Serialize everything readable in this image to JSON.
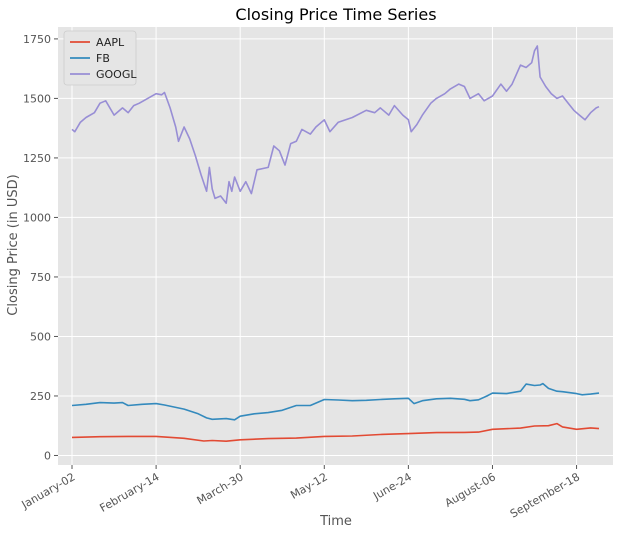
{
  "chart_data": {
    "type": "line",
    "title": "Closing Price Time Series",
    "xlabel": "Time",
    "ylabel": "Closing Price (in USD)",
    "x_tick_labels": [
      "January-02",
      "February-14",
      "March-30",
      "May-12",
      "June-24",
      "August-06",
      "September-18"
    ],
    "x_tick_positions": [
      0,
      30,
      60,
      90,
      120,
      150,
      180
    ],
    "x_range": [
      -5,
      193
    ],
    "ylim": [
      -40,
      1800
    ],
    "y_ticks": [
      0,
      250,
      500,
      750,
      1000,
      1250,
      1500,
      1750
    ],
    "grid": true,
    "legend_position": "top-left",
    "series": [
      {
        "name": "AAPL",
        "color": "#E24A33",
        "points": [
          [
            0,
            76
          ],
          [
            10,
            79
          ],
          [
            20,
            80
          ],
          [
            30,
            80
          ],
          [
            40,
            72
          ],
          [
            47,
            61
          ],
          [
            50,
            63
          ],
          [
            55,
            60
          ],
          [
            60,
            66
          ],
          [
            70,
            71
          ],
          [
            80,
            73
          ],
          [
            90,
            80
          ],
          [
            100,
            82
          ],
          [
            110,
            88
          ],
          [
            120,
            92
          ],
          [
            130,
            96
          ],
          [
            140,
            97
          ],
          [
            145,
            98
          ],
          [
            150,
            110
          ],
          [
            160,
            115
          ],
          [
            165,
            124
          ],
          [
            170,
            125
          ],
          [
            173,
            134
          ],
          [
            175,
            120
          ],
          [
            180,
            110
          ],
          [
            185,
            116
          ],
          [
            188,
            113
          ]
        ]
      },
      {
        "name": "FB",
        "color": "#348ABD",
        "points": [
          [
            0,
            210
          ],
          [
            5,
            215
          ],
          [
            10,
            222
          ],
          [
            15,
            220
          ],
          [
            18,
            222
          ],
          [
            20,
            210
          ],
          [
            25,
            215
          ],
          [
            30,
            218
          ],
          [
            33,
            212
          ],
          [
            40,
            195
          ],
          [
            45,
            175
          ],
          [
            48,
            158
          ],
          [
            50,
            152
          ],
          [
            55,
            155
          ],
          [
            58,
            150
          ],
          [
            60,
            165
          ],
          [
            65,
            175
          ],
          [
            70,
            180
          ],
          [
            75,
            190
          ],
          [
            80,
            210
          ],
          [
            85,
            210
          ],
          [
            90,
            235
          ],
          [
            95,
            233
          ],
          [
            100,
            230
          ],
          [
            105,
            232
          ],
          [
            110,
            235
          ],
          [
            115,
            238
          ],
          [
            120,
            240
          ],
          [
            122,
            218
          ],
          [
            125,
            230
          ],
          [
            130,
            238
          ],
          [
            135,
            240
          ],
          [
            140,
            236
          ],
          [
            142,
            230
          ],
          [
            145,
            234
          ],
          [
            148,
            250
          ],
          [
            150,
            262
          ],
          [
            155,
            260
          ],
          [
            160,
            270
          ],
          [
            162,
            300
          ],
          [
            165,
            294
          ],
          [
            167,
            296
          ],
          [
            168,
            302
          ],
          [
            170,
            282
          ],
          [
            173,
            270
          ],
          [
            175,
            268
          ],
          [
            180,
            260
          ],
          [
            182,
            255
          ],
          [
            185,
            258
          ],
          [
            188,
            262
          ]
        ]
      },
      {
        "name": "GOOGL",
        "color": "#988ED5",
        "points": [
          [
            0,
            1370
          ],
          [
            1,
            1360
          ],
          [
            3,
            1400
          ],
          [
            5,
            1420
          ],
          [
            8,
            1440
          ],
          [
            10,
            1480
          ],
          [
            12,
            1490
          ],
          [
            15,
            1430
          ],
          [
            18,
            1460
          ],
          [
            20,
            1440
          ],
          [
            22,
            1470
          ],
          [
            24,
            1480
          ],
          [
            27,
            1500
          ],
          [
            30,
            1520
          ],
          [
            32,
            1515
          ],
          [
            33,
            1525
          ],
          [
            35,
            1460
          ],
          [
            37,
            1380
          ],
          [
            38,
            1320
          ],
          [
            40,
            1380
          ],
          [
            42,
            1330
          ],
          [
            44,
            1260
          ],
          [
            46,
            1180
          ],
          [
            48,
            1110
          ],
          [
            49,
            1210
          ],
          [
            50,
            1120
          ],
          [
            51,
            1080
          ],
          [
            53,
            1090
          ],
          [
            55,
            1060
          ],
          [
            56,
            1150
          ],
          [
            57,
            1110
          ],
          [
            58,
            1170
          ],
          [
            60,
            1110
          ],
          [
            62,
            1150
          ],
          [
            64,
            1100
          ],
          [
            66,
            1200
          ],
          [
            70,
            1210
          ],
          [
            72,
            1300
          ],
          [
            74,
            1280
          ],
          [
            76,
            1220
          ],
          [
            78,
            1310
          ],
          [
            80,
            1320
          ],
          [
            82,
            1370
          ],
          [
            85,
            1350
          ],
          [
            87,
            1380
          ],
          [
            90,
            1410
          ],
          [
            92,
            1360
          ],
          [
            95,
            1400
          ],
          [
            100,
            1420
          ],
          [
            105,
            1450
          ],
          [
            108,
            1440
          ],
          [
            110,
            1460
          ],
          [
            113,
            1430
          ],
          [
            115,
            1470
          ],
          [
            118,
            1430
          ],
          [
            120,
            1410
          ],
          [
            121,
            1360
          ],
          [
            123,
            1390
          ],
          [
            125,
            1430
          ],
          [
            128,
            1480
          ],
          [
            130,
            1500
          ],
          [
            133,
            1520
          ],
          [
            135,
            1540
          ],
          [
            138,
            1560
          ],
          [
            140,
            1550
          ],
          [
            142,
            1500
          ],
          [
            145,
            1520
          ],
          [
            147,
            1490
          ],
          [
            150,
            1510
          ],
          [
            153,
            1560
          ],
          [
            155,
            1530
          ],
          [
            157,
            1560
          ],
          [
            160,
            1640
          ],
          [
            162,
            1630
          ],
          [
            164,
            1650
          ],
          [
            165,
            1700
          ],
          [
            166,
            1720
          ],
          [
            167,
            1590
          ],
          [
            169,
            1550
          ],
          [
            171,
            1520
          ],
          [
            173,
            1500
          ],
          [
            175,
            1510
          ],
          [
            177,
            1480
          ],
          [
            179,
            1450
          ],
          [
            181,
            1430
          ],
          [
            183,
            1410
          ],
          [
            185,
            1440
          ],
          [
            187,
            1460
          ],
          [
            188,
            1465
          ]
        ]
      }
    ]
  }
}
